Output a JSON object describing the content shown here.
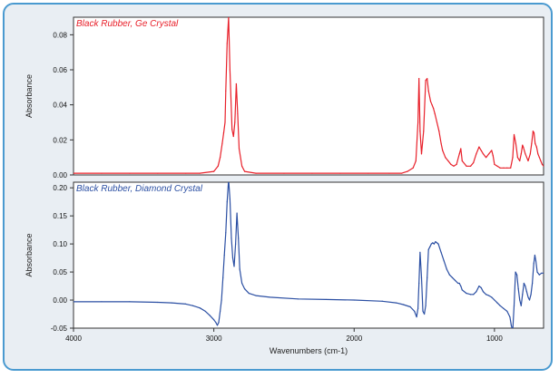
{
  "chart_data": [
    {
      "type": "line",
      "title": "",
      "xlabel": "",
      "ylabel": "Absorbance",
      "xlim": [
        4000,
        650
      ],
      "ylim": [
        0.0,
        0.09
      ],
      "yticks": [
        "0.08",
        "0.06",
        "0.04",
        "0.02",
        "0.00"
      ],
      "grid": false,
      "series": [
        {
          "name": "Black Rubber, Ge Crystal",
          "color": "#e8202a",
          "x": [
            4000,
            3800,
            3600,
            3400,
            3200,
            3100,
            3000,
            2970,
            2955,
            2940,
            2930,
            2920,
            2915,
            2905,
            2895,
            2885,
            2870,
            2860,
            2850,
            2840,
            2830,
            2820,
            2800,
            2780,
            2700,
            2500,
            2300,
            2100,
            1900,
            1750,
            1660,
            1620,
            1580,
            1560,
            1545,
            1538,
            1530,
            1520,
            1505,
            1490,
            1480,
            1470,
            1455,
            1445,
            1435,
            1425,
            1410,
            1395,
            1380,
            1370,
            1350,
            1330,
            1310,
            1290,
            1270,
            1250,
            1240,
            1230,
            1200,
            1170,
            1150,
            1130,
            1110,
            1095,
            1080,
            1060,
            1040,
            1020,
            1010,
            1000,
            980,
            960,
            935,
            910,
            885,
            870,
            860,
            848,
            835,
            820,
            810,
            800,
            795,
            780,
            760,
            745,
            735,
            725,
            718,
            710,
            700,
            690,
            680,
            670,
            660,
            650
          ],
          "values": [
            0.001,
            0.001,
            0.001,
            0.001,
            0.001,
            0.001,
            0.002,
            0.005,
            0.01,
            0.018,
            0.024,
            0.03,
            0.048,
            0.075,
            0.09,
            0.06,
            0.026,
            0.022,
            0.03,
            0.052,
            0.035,
            0.015,
            0.005,
            0.002,
            0.001,
            0.001,
            0.001,
            0.001,
            0.001,
            0.001,
            0.001,
            0.002,
            0.004,
            0.008,
            0.03,
            0.055,
            0.025,
            0.012,
            0.025,
            0.054,
            0.055,
            0.048,
            0.042,
            0.04,
            0.038,
            0.035,
            0.03,
            0.025,
            0.018,
            0.014,
            0.01,
            0.008,
            0.006,
            0.005,
            0.006,
            0.012,
            0.015,
            0.008,
            0.005,
            0.005,
            0.007,
            0.012,
            0.016,
            0.014,
            0.012,
            0.01,
            0.012,
            0.014,
            0.011,
            0.006,
            0.005,
            0.004,
            0.004,
            0.004,
            0.004,
            0.01,
            0.023,
            0.018,
            0.01,
            0.008,
            0.012,
            0.017,
            0.016,
            0.012,
            0.008,
            0.012,
            0.018,
            0.025,
            0.024,
            0.018,
            0.016,
            0.012,
            0.01,
            0.008,
            0.006,
            0.005
          ]
        }
      ]
    },
    {
      "type": "line",
      "title": "",
      "xlabel": "Wavenumbers (cm-1)",
      "ylabel": "Absorbance",
      "xlim": [
        4000,
        650
      ],
      "ylim": [
        -0.05,
        0.21
      ],
      "yticks": [
        "0.20",
        "0.15",
        "0.10",
        "0.05",
        "0.00",
        "-0.05"
      ],
      "xticks": [
        "4000",
        "3000",
        "2000",
        "1000"
      ],
      "grid": false,
      "series": [
        {
          "name": "Black Rubber, Diamond Crystal",
          "color": "#2b4fa3",
          "x": [
            4000,
            3800,
            3600,
            3400,
            3300,
            3200,
            3150,
            3100,
            3060,
            3030,
            3000,
            2985,
            2975,
            2965,
            2955,
            2945,
            2935,
            2925,
            2915,
            2905,
            2895,
            2885,
            2875,
            2865,
            2855,
            2845,
            2835,
            2825,
            2815,
            2800,
            2780,
            2750,
            2700,
            2600,
            2400,
            2200,
            2000,
            1800,
            1700,
            1650,
            1600,
            1570,
            1555,
            1545,
            1538,
            1530,
            1520,
            1510,
            1500,
            1490,
            1480,
            1470,
            1460,
            1450,
            1440,
            1430,
            1420,
            1410,
            1400,
            1380,
            1360,
            1340,
            1320,
            1300,
            1280,
            1260,
            1250,
            1240,
            1230,
            1200,
            1170,
            1150,
            1130,
            1110,
            1095,
            1080,
            1060,
            1040,
            1020,
            1000,
            980,
            960,
            935,
            910,
            890,
            880,
            870,
            860,
            850,
            840,
            830,
            820,
            810,
            800,
            790,
            780,
            770,
            760,
            750,
            740,
            730,
            720,
            712,
            705,
            695,
            680,
            665,
            650
          ],
          "values": [
            -0.003,
            -0.003,
            -0.003,
            -0.004,
            -0.005,
            -0.007,
            -0.01,
            -0.014,
            -0.02,
            -0.027,
            -0.035,
            -0.04,
            -0.045,
            -0.04,
            -0.02,
            0.0,
            0.04,
            0.08,
            0.12,
            0.175,
            0.215,
            0.18,
            0.11,
            0.075,
            0.06,
            0.1,
            0.155,
            0.11,
            0.055,
            0.03,
            0.02,
            0.012,
            0.008,
            0.005,
            0.002,
            0.001,
            0.0,
            -0.002,
            -0.005,
            -0.008,
            -0.012,
            -0.02,
            -0.03,
            -0.015,
            0.03,
            0.085,
            0.04,
            -0.02,
            -0.025,
            -0.01,
            0.04,
            0.09,
            0.095,
            0.1,
            0.102,
            0.1,
            0.104,
            0.102,
            0.1,
            0.085,
            0.07,
            0.055,
            0.045,
            0.04,
            0.035,
            0.03,
            0.03,
            0.025,
            0.018,
            0.012,
            0.01,
            0.01,
            0.015,
            0.025,
            0.022,
            0.015,
            0.01,
            0.008,
            0.005,
            0.0,
            -0.005,
            -0.01,
            -0.015,
            -0.02,
            -0.03,
            -0.045,
            -0.055,
            -0.01,
            0.05,
            0.045,
            0.02,
            0.0,
            -0.01,
            0.01,
            0.03,
            0.025,
            0.015,
            0.005,
            0.0,
            0.01,
            0.03,
            0.065,
            0.08,
            0.07,
            0.05,
            0.045,
            0.048,
            0.048
          ]
        }
      ]
    }
  ],
  "panel_background": "#ffffff",
  "frame_border": "#4a9ad0"
}
